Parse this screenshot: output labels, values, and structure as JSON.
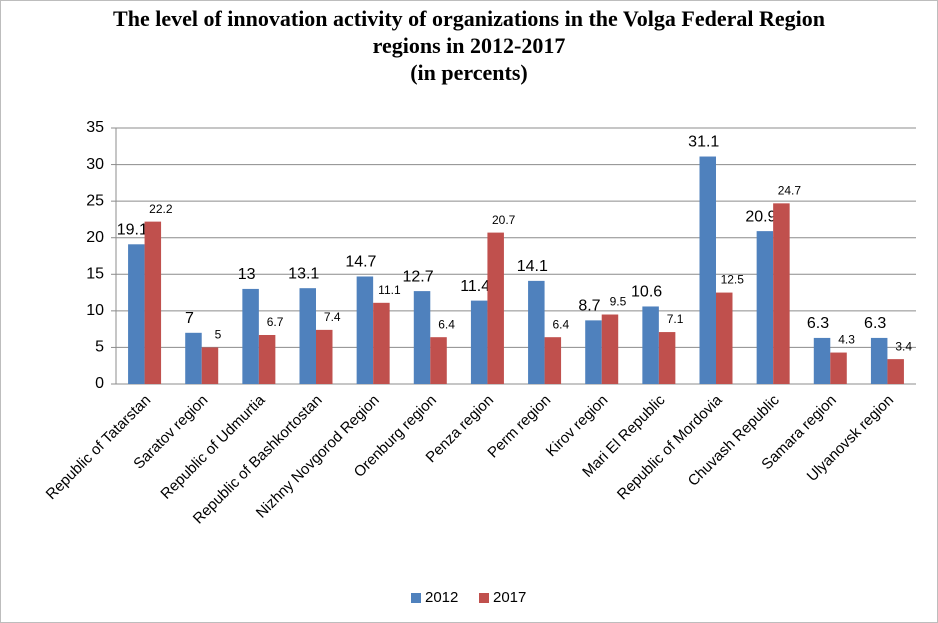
{
  "chart_data": {
    "type": "bar",
    "title": "The level of innovation activity of organizations in the Volga Federal Region regions in 2012-2017",
    "subtitle": "(in percents)",
    "categories": [
      "Republic of Tatarstan",
      "Saratov region",
      "Republic of Udmurtia",
      "Republic of Bashkortostan",
      "Nizhny Novgorod Region",
      "Orenburg region",
      "Penza region",
      "Perm region",
      "Kirov region",
      "Mari El Republic",
      "Republic of Mordovia",
      "Chuvash Republic",
      "Samara region",
      "Ulyanovsk region"
    ],
    "series": [
      {
        "name": "2012",
        "color": "#4f81bd",
        "values": [
          19.1,
          7,
          13,
          13.1,
          14.7,
          12.7,
          11.4,
          14.1,
          8.7,
          10.6,
          31.1,
          20.9,
          6.3,
          6.3
        ]
      },
      {
        "name": "2017",
        "color": "#c0504d",
        "values": [
          22.2,
          5,
          6.7,
          7.4,
          11.1,
          6.4,
          20.7,
          6.4,
          9.5,
          7.1,
          12.5,
          24.7,
          4.3,
          3.4
        ]
      }
    ],
    "ylim": [
      0,
      35
    ],
    "yticks": [
      0,
      5,
      10,
      15,
      20,
      25,
      30,
      35
    ],
    "grid": true,
    "legend": "bottom"
  }
}
